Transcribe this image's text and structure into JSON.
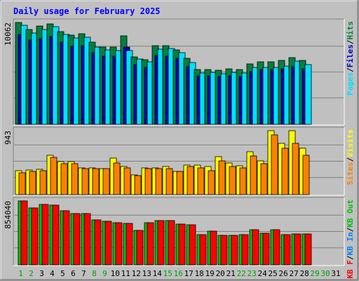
{
  "chart_data": {
    "type": "bar",
    "title": "Daily usage for February 2025",
    "categories": [
      "1",
      "2",
      "3",
      "4",
      "5",
      "6",
      "7",
      "8",
      "9",
      "10",
      "11",
      "12",
      "13",
      "14",
      "15",
      "16",
      "17",
      "18",
      "19",
      "20",
      "21",
      "22",
      "23",
      "24",
      "25",
      "26",
      "27",
      "28",
      "29",
      "30",
      "31"
    ],
    "weekend_categories": [
      "1",
      "2",
      "8",
      "9",
      "15",
      "16",
      "22",
      "23",
      "29",
      "30"
    ],
    "days_with_data": 28,
    "panels": [
      {
        "id": "top",
        "max_label": "10062",
        "max_value": 10062,
        "series": [
          {
            "name": "Hits",
            "color": "#008040",
            "values": [
              10062,
              9375,
              9730,
              9913,
              9185,
              8812,
              8937,
              8125,
              7625,
              7625,
              8750,
              6687,
              6375,
              7750,
              7750,
              7375,
              6500,
              5437,
              5437,
              5312,
              5500,
              5437,
              5937,
              6187,
              6187,
              6312,
              6562,
              6312,
              0,
              0,
              0
            ]
          },
          {
            "name": "Files",
            "color": "#0000c0",
            "values": [
              8900,
              8300,
              8500,
              8700,
              8100,
              7700,
              7800,
              7100,
              6700,
              6700,
              7600,
              5900,
              5600,
              6800,
              6700,
              6500,
              5700,
              4800,
              4800,
              4700,
              4800,
              4700,
              5200,
              5400,
              5400,
              5500,
              5700,
              5500,
              0,
              0,
              0
            ]
          },
          {
            "name": "Pages",
            "color": "#00e0ff",
            "values": [
              9750,
              9000,
              9375,
              9625,
              8875,
              8562,
              8625,
              7625,
              7375,
              7312,
              7312,
              6437,
              6187,
              7437,
              7500,
              7062,
              6125,
              5062,
              5125,
              5000,
              5125,
              5062,
              5625,
              5625,
              5625,
              5750,
              6250,
              5875,
              0,
              0,
              0
            ]
          }
        ]
      },
      {
        "id": "mid",
        "max_label": "943",
        "max_value": 943,
        "series": [
          {
            "name": "Visits",
            "color": "#ffff00",
            "values": [
              352,
              364,
              375,
              578,
              484,
              484,
              396,
              396,
              383,
              537,
              417,
              289,
              398,
              398,
              417,
              341,
              437,
              437,
              414,
              558,
              470,
              425,
              627,
              497,
              943,
              754,
              943,
              688,
              0,
              0,
              0
            ]
          },
          {
            "name": "Sites",
            "color": "#ff8000",
            "values": [
              326,
              339,
              352,
              551,
              459,
              459,
              383,
              383,
              379,
              470,
              396,
              282,
              383,
              383,
              383,
              339,
              417,
              396,
              352,
              495,
              411,
              396,
              573,
              459,
              877,
              688,
              754,
              576,
              0,
              0,
              0
            ]
          }
        ]
      },
      {
        "id": "bot",
        "max_label": "854040",
        "max_value": 854040,
        "series": [
          {
            "name": "KB In",
            "color": "#0080ff",
            "values": [
              0,
              0,
              0,
              0,
              0,
              0,
              0,
              0,
              0,
              0,
              0,
              0,
              0,
              0,
              0,
              0,
              0,
              0,
              0,
              0,
              0,
              0,
              0,
              0,
              0,
              0,
              0,
              0,
              0,
              0,
              0
            ]
          },
          {
            "name": "KB Out",
            "color": "#00c000",
            "values": [
              850000,
              763000,
              808000,
              795000,
              723000,
              683000,
              683000,
              599000,
              578000,
              565000,
              556000,
              462000,
              559000,
              595000,
              595000,
              548000,
              531000,
              404000,
              446000,
              397000,
              397000,
              405000,
              470000,
              427000,
              470000,
              405000,
              417000,
              416000,
              0,
              0,
              0
            ]
          },
          {
            "name": "KB F",
            "color": "#ff0000",
            "values": [
              850000,
              763000,
              808000,
              795000,
              723000,
              683000,
              683000,
              599000,
              578000,
              565000,
              556000,
              462000,
              559000,
              595000,
              595000,
              548000,
              531000,
              404000,
              446000,
              397000,
              397000,
              405000,
              470000,
              427000,
              470000,
              405000,
              417000,
              416000,
              0,
              0,
              0
            ]
          }
        ]
      }
    ]
  },
  "legend": {
    "top": [
      {
        "text": "Pages",
        "color": "#00e0ff"
      },
      {
        "text": "/",
        "color": "#000000"
      },
      {
        "text": "Files",
        "color": "#0000c0"
      },
      {
        "text": "/",
        "color": "#000000"
      },
      {
        "text": "Hits",
        "color": "#008040"
      }
    ],
    "mid": [
      {
        "text": "Sites",
        "color": "#ff8000"
      },
      {
        "text": "/",
        "color": "#000000"
      },
      {
        "text": "Visits",
        "color": "#ffff00"
      }
    ],
    "bot": [
      {
        "text": "KB F",
        "color": "#ff0000"
      },
      {
        "text": "/",
        "color": "#000000"
      },
      {
        "text": "KB In",
        "color": "#0080ff"
      },
      {
        "text": "/",
        "color": "#000000"
      },
      {
        "text": "KB Out",
        "color": "#00c000"
      }
    ]
  },
  "colors": {
    "background": "#c0c0c0",
    "title": "#0000ff",
    "weekend_day": "#00a000",
    "weekday": "#000000",
    "grid": "#808080"
  }
}
